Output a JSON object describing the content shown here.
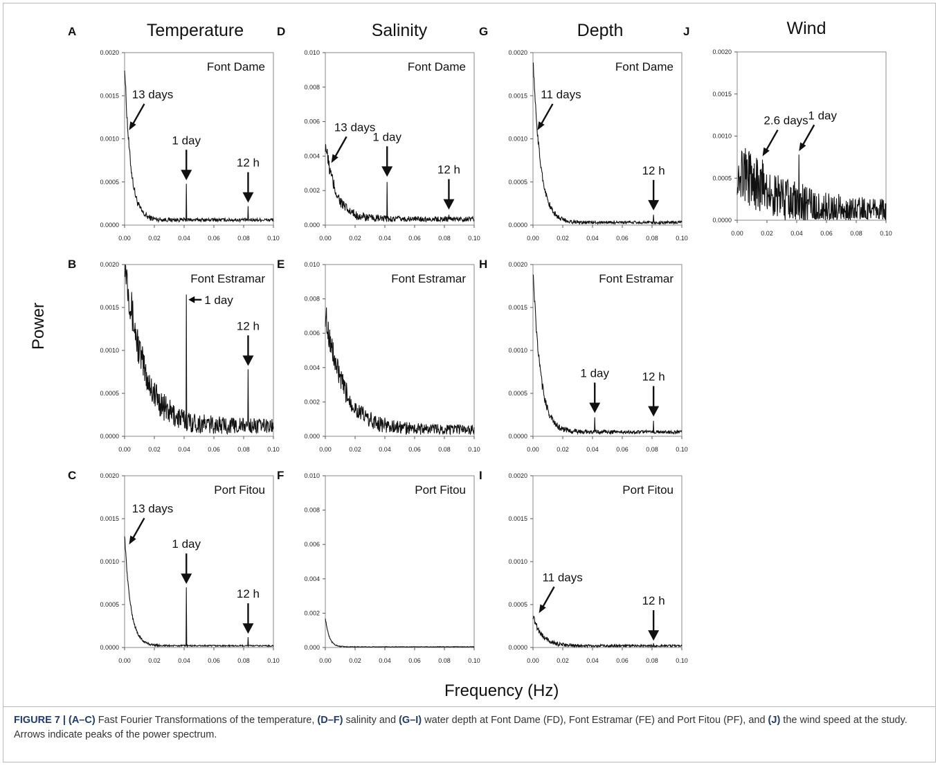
{
  "column_titles": [
    "Temperature",
    "Salinity",
    "Depth",
    "Wind"
  ],
  "y_axis_title": "Power",
  "x_axis_title": "Frequency (Hz)",
  "caption": {
    "figure_label": "FIGURE 7 |",
    "parts": [
      {
        "bold": "(A–C)",
        "text": " Fast Fourier Transformations of the temperature, "
      },
      {
        "bold": "(D–F)",
        "text": " salinity and "
      },
      {
        "bold": "(G–I)",
        "text": " water depth at Font Dame (FD), Font Estramar (FE) and Port Fitou (PF), and "
      },
      {
        "bold": "(J)",
        "text": " the wind speed at the study. Arrows indicate peaks of the power spectrum."
      }
    ]
  },
  "chart_data": [
    {
      "panel": "A",
      "type": "line",
      "title": "Font Dame",
      "variable": "Temperature",
      "xlim": [
        0,
        0.1
      ],
      "ylim": [
        0,
        0.002
      ],
      "xticks": [
        "0.00",
        "0.02",
        "0.04",
        "0.06",
        "0.08",
        "0.10"
      ],
      "yticks": [
        "0.0000",
        "0.0005",
        "0.0010",
        "0.0015",
        "0.0020"
      ],
      "background": {
        "peak": 0.0018,
        "decay": 0.004,
        "floor": 6e-05,
        "noise": 5e-05
      },
      "peaks": [
        {
          "x": 0.0415,
          "y": 0.00048
        },
        {
          "x": 0.083,
          "y": 0.00022
        }
      ],
      "annotations": [
        {
          "label": "13 days",
          "x": 0.003,
          "y": 0.0011
        },
        {
          "label": "1 day",
          "x": 0.0415,
          "y": 0.00052
        },
        {
          "label": "12 h",
          "x": 0.083,
          "y": 0.00026
        }
      ]
    },
    {
      "panel": "B",
      "type": "line",
      "title": "Font Estramar",
      "variable": "Temperature",
      "xlim": [
        0,
        0.1
      ],
      "ylim": [
        0,
        0.002
      ],
      "xticks": [
        "0.00",
        "0.02",
        "0.04",
        "0.06",
        "0.08",
        "0.10"
      ],
      "yticks": [
        "0.0000",
        "0.0005",
        "0.0010",
        "0.0015",
        "0.0020"
      ],
      "background": {
        "peak": 0.002,
        "decay": 0.012,
        "floor": 0.00012,
        "noise": 0.00018
      },
      "peaks": [
        {
          "x": 0.0415,
          "y": 0.00165
        },
        {
          "x": 0.083,
          "y": 0.00078
        }
      ],
      "annotations": [
        {
          "label": "1 day",
          "x": 0.0415,
          "y": 0.00155
        },
        {
          "label": "12 h",
          "x": 0.083,
          "y": 0.00082
        }
      ]
    },
    {
      "panel": "C",
      "type": "line",
      "title": "Port Fitou",
      "variable": "Temperature",
      "xlim": [
        0,
        0.1
      ],
      "ylim": [
        0,
        0.002
      ],
      "xticks": [
        "0.00",
        "0.02",
        "0.04",
        "0.06",
        "0.08",
        "0.10"
      ],
      "yticks": [
        "0.0000",
        "0.0005",
        "0.0010",
        "0.0015",
        "0.0020"
      ],
      "background": {
        "peak": 0.0013,
        "decay": 0.004,
        "floor": 2e-05,
        "noise": 2e-05
      },
      "peaks": [
        {
          "x": 0.0415,
          "y": 0.0007
        },
        {
          "x": 0.083,
          "y": 0.00012
        }
      ],
      "annotations": [
        {
          "label": "13 days",
          "x": 0.003,
          "y": 0.0012
        },
        {
          "label": "1 day",
          "x": 0.0415,
          "y": 0.00074
        },
        {
          "label": "12 h",
          "x": 0.083,
          "y": 0.00016
        }
      ]
    },
    {
      "panel": "D",
      "type": "line",
      "title": "Font Dame",
      "variable": "Salinity",
      "xlim": [
        0,
        0.1
      ],
      "ylim": [
        0,
        0.01
      ],
      "xticks": [
        "0.00",
        "0.02",
        "0.04",
        "0.06",
        "0.08",
        "0.10"
      ],
      "yticks": [
        "0.000",
        "0.002",
        "0.004",
        "0.006",
        "0.008",
        "0.010"
      ],
      "background": {
        "peak": 0.0044,
        "decay": 0.007,
        "floor": 0.00035,
        "noise": 0.00035
      },
      "peaks": [
        {
          "x": 0.0415,
          "y": 0.0025
        },
        {
          "x": 0.083,
          "y": 0.0006
        }
      ],
      "annotations": [
        {
          "label": "13 days",
          "x": 0.004,
          "y": 0.0036
        },
        {
          "label": "1 day",
          "x": 0.0415,
          "y": 0.0028
        },
        {
          "label": "12 h",
          "x": 0.083,
          "y": 0.0009
        }
      ]
    },
    {
      "panel": "E",
      "type": "line",
      "title": "Font Estramar",
      "variable": "Salinity",
      "xlim": [
        0,
        0.1
      ],
      "ylim": [
        0,
        0.01
      ],
      "xticks": [
        "0.00",
        "0.02",
        "0.04",
        "0.06",
        "0.08",
        "0.10"
      ],
      "yticks": [
        "0.000",
        "0.002",
        "0.004",
        "0.006",
        "0.008",
        "0.010"
      ],
      "background": {
        "peak": 0.0068,
        "decay": 0.012,
        "floor": 0.0004,
        "noise": 0.0006
      },
      "peaks": [],
      "annotations": []
    },
    {
      "panel": "F",
      "type": "line",
      "title": "Port Fitou",
      "variable": "Salinity",
      "xlim": [
        0,
        0.1
      ],
      "ylim": [
        0,
        0.01
      ],
      "xticks": [
        "0.00",
        "0.02",
        "0.04",
        "0.06",
        "0.08",
        "0.10"
      ],
      "yticks": [
        "0.000",
        "0.002",
        "0.004",
        "0.006",
        "0.008",
        "0.010"
      ],
      "background": {
        "peak": 0.0017,
        "decay": 0.0025,
        "floor": 4e-05,
        "noise": 4e-05
      },
      "peaks": [],
      "annotations": []
    },
    {
      "panel": "G",
      "type": "line",
      "title": "Font Dame",
      "variable": "Depth",
      "xlim": [
        0,
        0.1
      ],
      "ylim": [
        0,
        0.002
      ],
      "xticks": [
        "0.00",
        "0.02",
        "0.04",
        "0.06",
        "0.08",
        "0.10"
      ],
      "yticks": [
        "0.0000",
        "0.0005",
        "0.0010",
        "0.0015",
        "0.0020"
      ],
      "background": {
        "peak": 0.0019,
        "decay": 0.005,
        "floor": 3e-05,
        "noise": 4e-05
      },
      "peaks": [
        {
          "x": 0.081,
          "y": 0.00012
        }
      ],
      "annotations": [
        {
          "label": "11 days",
          "x": 0.003,
          "y": 0.0011
        },
        {
          "label": "12 h",
          "x": 0.081,
          "y": 0.00017
        }
      ]
    },
    {
      "panel": "H",
      "type": "line",
      "title": "Font Estramar",
      "variable": "Depth",
      "xlim": [
        0,
        0.1
      ],
      "ylim": [
        0,
        0.002
      ],
      "xticks": [
        "0.00",
        "0.02",
        "0.04",
        "0.06",
        "0.08",
        "0.10"
      ],
      "yticks": [
        "0.0000",
        "0.0005",
        "0.0010",
        "0.0015",
        "0.0020"
      ],
      "background": {
        "peak": 0.0019,
        "decay": 0.005,
        "floor": 5e-05,
        "noise": 5e-05
      },
      "peaks": [
        {
          "x": 0.0415,
          "y": 0.00022
        },
        {
          "x": 0.081,
          "y": 0.00018
        }
      ],
      "annotations": [
        {
          "label": "1 day",
          "x": 0.0415,
          "y": 0.00027
        },
        {
          "label": "12 h",
          "x": 0.081,
          "y": 0.00023
        }
      ]
    },
    {
      "panel": "I",
      "type": "line",
      "title": "Port Fitou",
      "variable": "Depth",
      "xlim": [
        0,
        0.1
      ],
      "ylim": [
        0,
        0.002
      ],
      "xticks": [
        "0.00",
        "0.02",
        "0.04",
        "0.06",
        "0.08",
        "0.10"
      ],
      "yticks": [
        "0.0000",
        "0.0005",
        "0.0010",
        "0.0015",
        "0.0020"
      ],
      "background": {
        "peak": 0.00035,
        "decay": 0.006,
        "floor": 2e-05,
        "noise": 3e-05
      },
      "peaks": [
        {
          "x": 0.081,
          "y": 5e-05
        }
      ],
      "annotations": [
        {
          "label": "11 days",
          "x": 0.004,
          "y": 0.0004
        },
        {
          "label": "12 h",
          "x": 0.081,
          "y": 8e-05
        }
      ]
    },
    {
      "panel": "J",
      "type": "line",
      "title": "",
      "variable": "Wind",
      "xlim": [
        0,
        0.1
      ],
      "ylim": [
        0,
        0.002
      ],
      "xticks": [
        "0.00",
        "0.02",
        "0.04",
        "0.06",
        "0.08",
        "0.10"
      ],
      "yticks": [
        "0.0000",
        "0.0005",
        "0.0010",
        "0.0015",
        "0.0020"
      ],
      "background": {
        "peak": 0.0006,
        "decay": 0.03,
        "floor": 4e-05,
        "noise": 0.00025
      },
      "peaks": [
        {
          "x": 0.017,
          "y": 0.00072
        },
        {
          "x": 0.0415,
          "y": 0.00078
        }
      ],
      "annotations": [
        {
          "label": "2.6 days",
          "x": 0.017,
          "y": 0.00076
        },
        {
          "label": "1 day",
          "x": 0.0415,
          "y": 0.00082
        }
      ]
    }
  ]
}
